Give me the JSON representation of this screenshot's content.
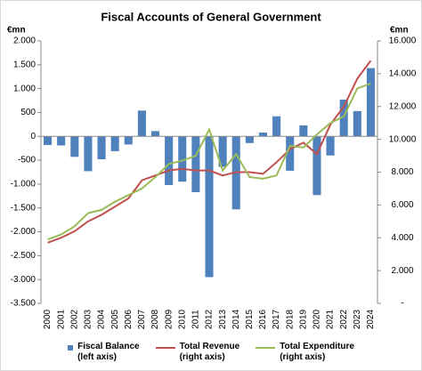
{
  "chart_data": {
    "type": "combo",
    "title": "Fiscal Accounts of General Government",
    "y_label": "€mn",
    "y2_label": "€mn",
    "categories": [
      "2000",
      "2001",
      "2002",
      "2003",
      "2004",
      "2005",
      "2006",
      "2007",
      "2008",
      "2009",
      "2010",
      "2011",
      "2012",
      "2013",
      "2014",
      "2015",
      "2016",
      "2017",
      "2018",
      "2019",
      "2020",
      "2021",
      "2022",
      "2023",
      "2024"
    ],
    "series": [
      {
        "name": "Fiscal Balance\n(left axis)",
        "type": "bar",
        "axis": "y",
        "color": "#4f81bd",
        "values": [
          -180,
          -190,
          -430,
          -730,
          -480,
          -310,
          -170,
          540,
          110,
          -1020,
          -950,
          -1170,
          -2950,
          -640,
          -1530,
          -140,
          80,
          420,
          -720,
          230,
          -1230,
          -400,
          770,
          530,
          1430
        ]
      },
      {
        "name": "Total Revenue\n(right axis)",
        "type": "line",
        "axis": "y2",
        "color": "#c0504d",
        "values": [
          3700,
          4000,
          4400,
          5000,
          5400,
          5900,
          6400,
          7500,
          7800,
          8100,
          8200,
          8100,
          8100,
          7800,
          8000,
          8000,
          7900,
          8600,
          9400,
          9800,
          9100,
          10900,
          12000,
          13700,
          14800
        ]
      },
      {
        "name": "Total Expenditure\n(right axis)",
        "type": "line",
        "axis": "y2",
        "color": "#9bbb59",
        "values": [
          3900,
          4200,
          4700,
          5500,
          5700,
          6200,
          6600,
          7000,
          7700,
          8500,
          8700,
          9000,
          10600,
          8100,
          9100,
          7700,
          7600,
          7800,
          9600,
          9500,
          10300,
          11000,
          11400,
          13100,
          13400
        ]
      }
    ],
    "ylim": [
      -3500,
      2000
    ],
    "yticks": [
      {
        "value": -3500,
        "label": "-3.500"
      },
      {
        "value": -3000,
        "label": "-3.000"
      },
      {
        "value": -2500,
        "label": "-2.500"
      },
      {
        "value": -2000,
        "label": "-2.000"
      },
      {
        "value": -1500,
        "label": "-1.500"
      },
      {
        "value": -1000,
        "label": "-1.000"
      },
      -500,
      0,
      500,
      {
        "value": 1000,
        "label": "1.000"
      },
      {
        "value": 1500,
        "label": "1.500"
      },
      {
        "value": 2000,
        "label": "2.000"
      }
    ],
    "y2lim": [
      0,
      16000
    ],
    "y2ticks": [
      {
        "value": 0,
        "label": "-"
      },
      {
        "value": 2000,
        "label": "2.000"
      },
      {
        "value": 4000,
        "label": "4.000"
      },
      {
        "value": 6000,
        "label": "6.000"
      },
      {
        "value": 8000,
        "label": "8.000"
      },
      {
        "value": 10000,
        "label": "10.000"
      },
      {
        "value": 12000,
        "label": "12.000"
      },
      {
        "value": 14000,
        "label": "14.000"
      },
      {
        "value": 16000,
        "label": "16.000"
      }
    ],
    "grid": false
  }
}
